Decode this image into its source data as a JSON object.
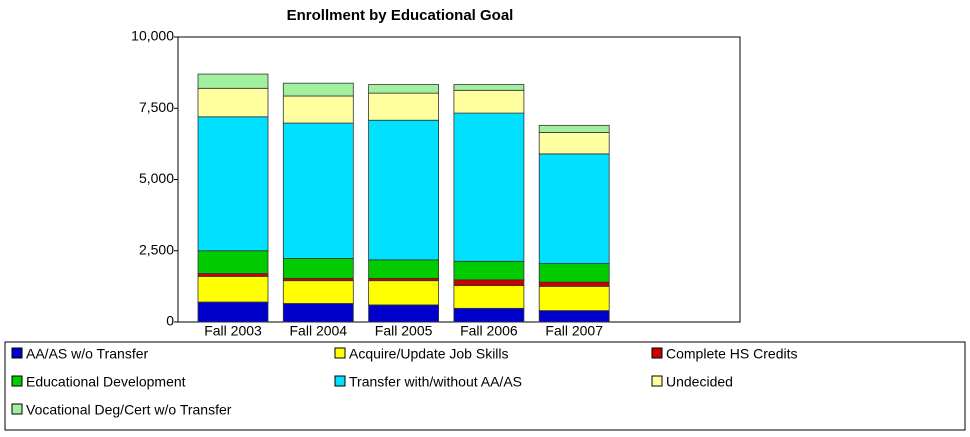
{
  "chart_data": {
    "type": "stacked_bar",
    "title": "Enrollment by Educational Goal",
    "categories": [
      "Fall 2003",
      "Fall 2004",
      "Fall 2005",
      "Fall 2006",
      "Fall 2007"
    ],
    "series": [
      {
        "name": "AA/AS w/o Transfer",
        "color": "#0000cc",
        "values": [
          700,
          650,
          600,
          480,
          400
        ]
      },
      {
        "name": "Acquire/Update Job Skills",
        "color": "#ffff00",
        "values": [
          900,
          800,
          850,
          800,
          850
        ]
      },
      {
        "name": "Complete HS Credits",
        "color": "#cc0000",
        "values": [
          100,
          80,
          80,
          200,
          150
        ]
      },
      {
        "name": "Educational Development",
        "color": "#00cc00",
        "values": [
          800,
          700,
          650,
          650,
          650
        ]
      },
      {
        "name": "Transfer with/without AA/AS",
        "color": "#00e0ff",
        "values": [
          4700,
          4750,
          4900,
          5200,
          3850
        ]
      },
      {
        "name": "Undecided",
        "color": "#ffffa0",
        "values": [
          1000,
          950,
          950,
          800,
          750
        ]
      },
      {
        "name": "Vocational Deg/Cert w/o Transfer",
        "color": "#a0f0a0",
        "values": [
          500,
          450,
          300,
          200,
          250
        ]
      }
    ],
    "ylim": [
      0,
      10000
    ],
    "yticks": [
      0,
      {
        "value": 2500,
        "label": "2,500"
      },
      {
        "value": 5000,
        "label": "5,000"
      },
      {
        "value": 7500,
        "label": "7,500"
      },
      {
        "value": 10000,
        "label": "10,000"
      }
    ]
  }
}
